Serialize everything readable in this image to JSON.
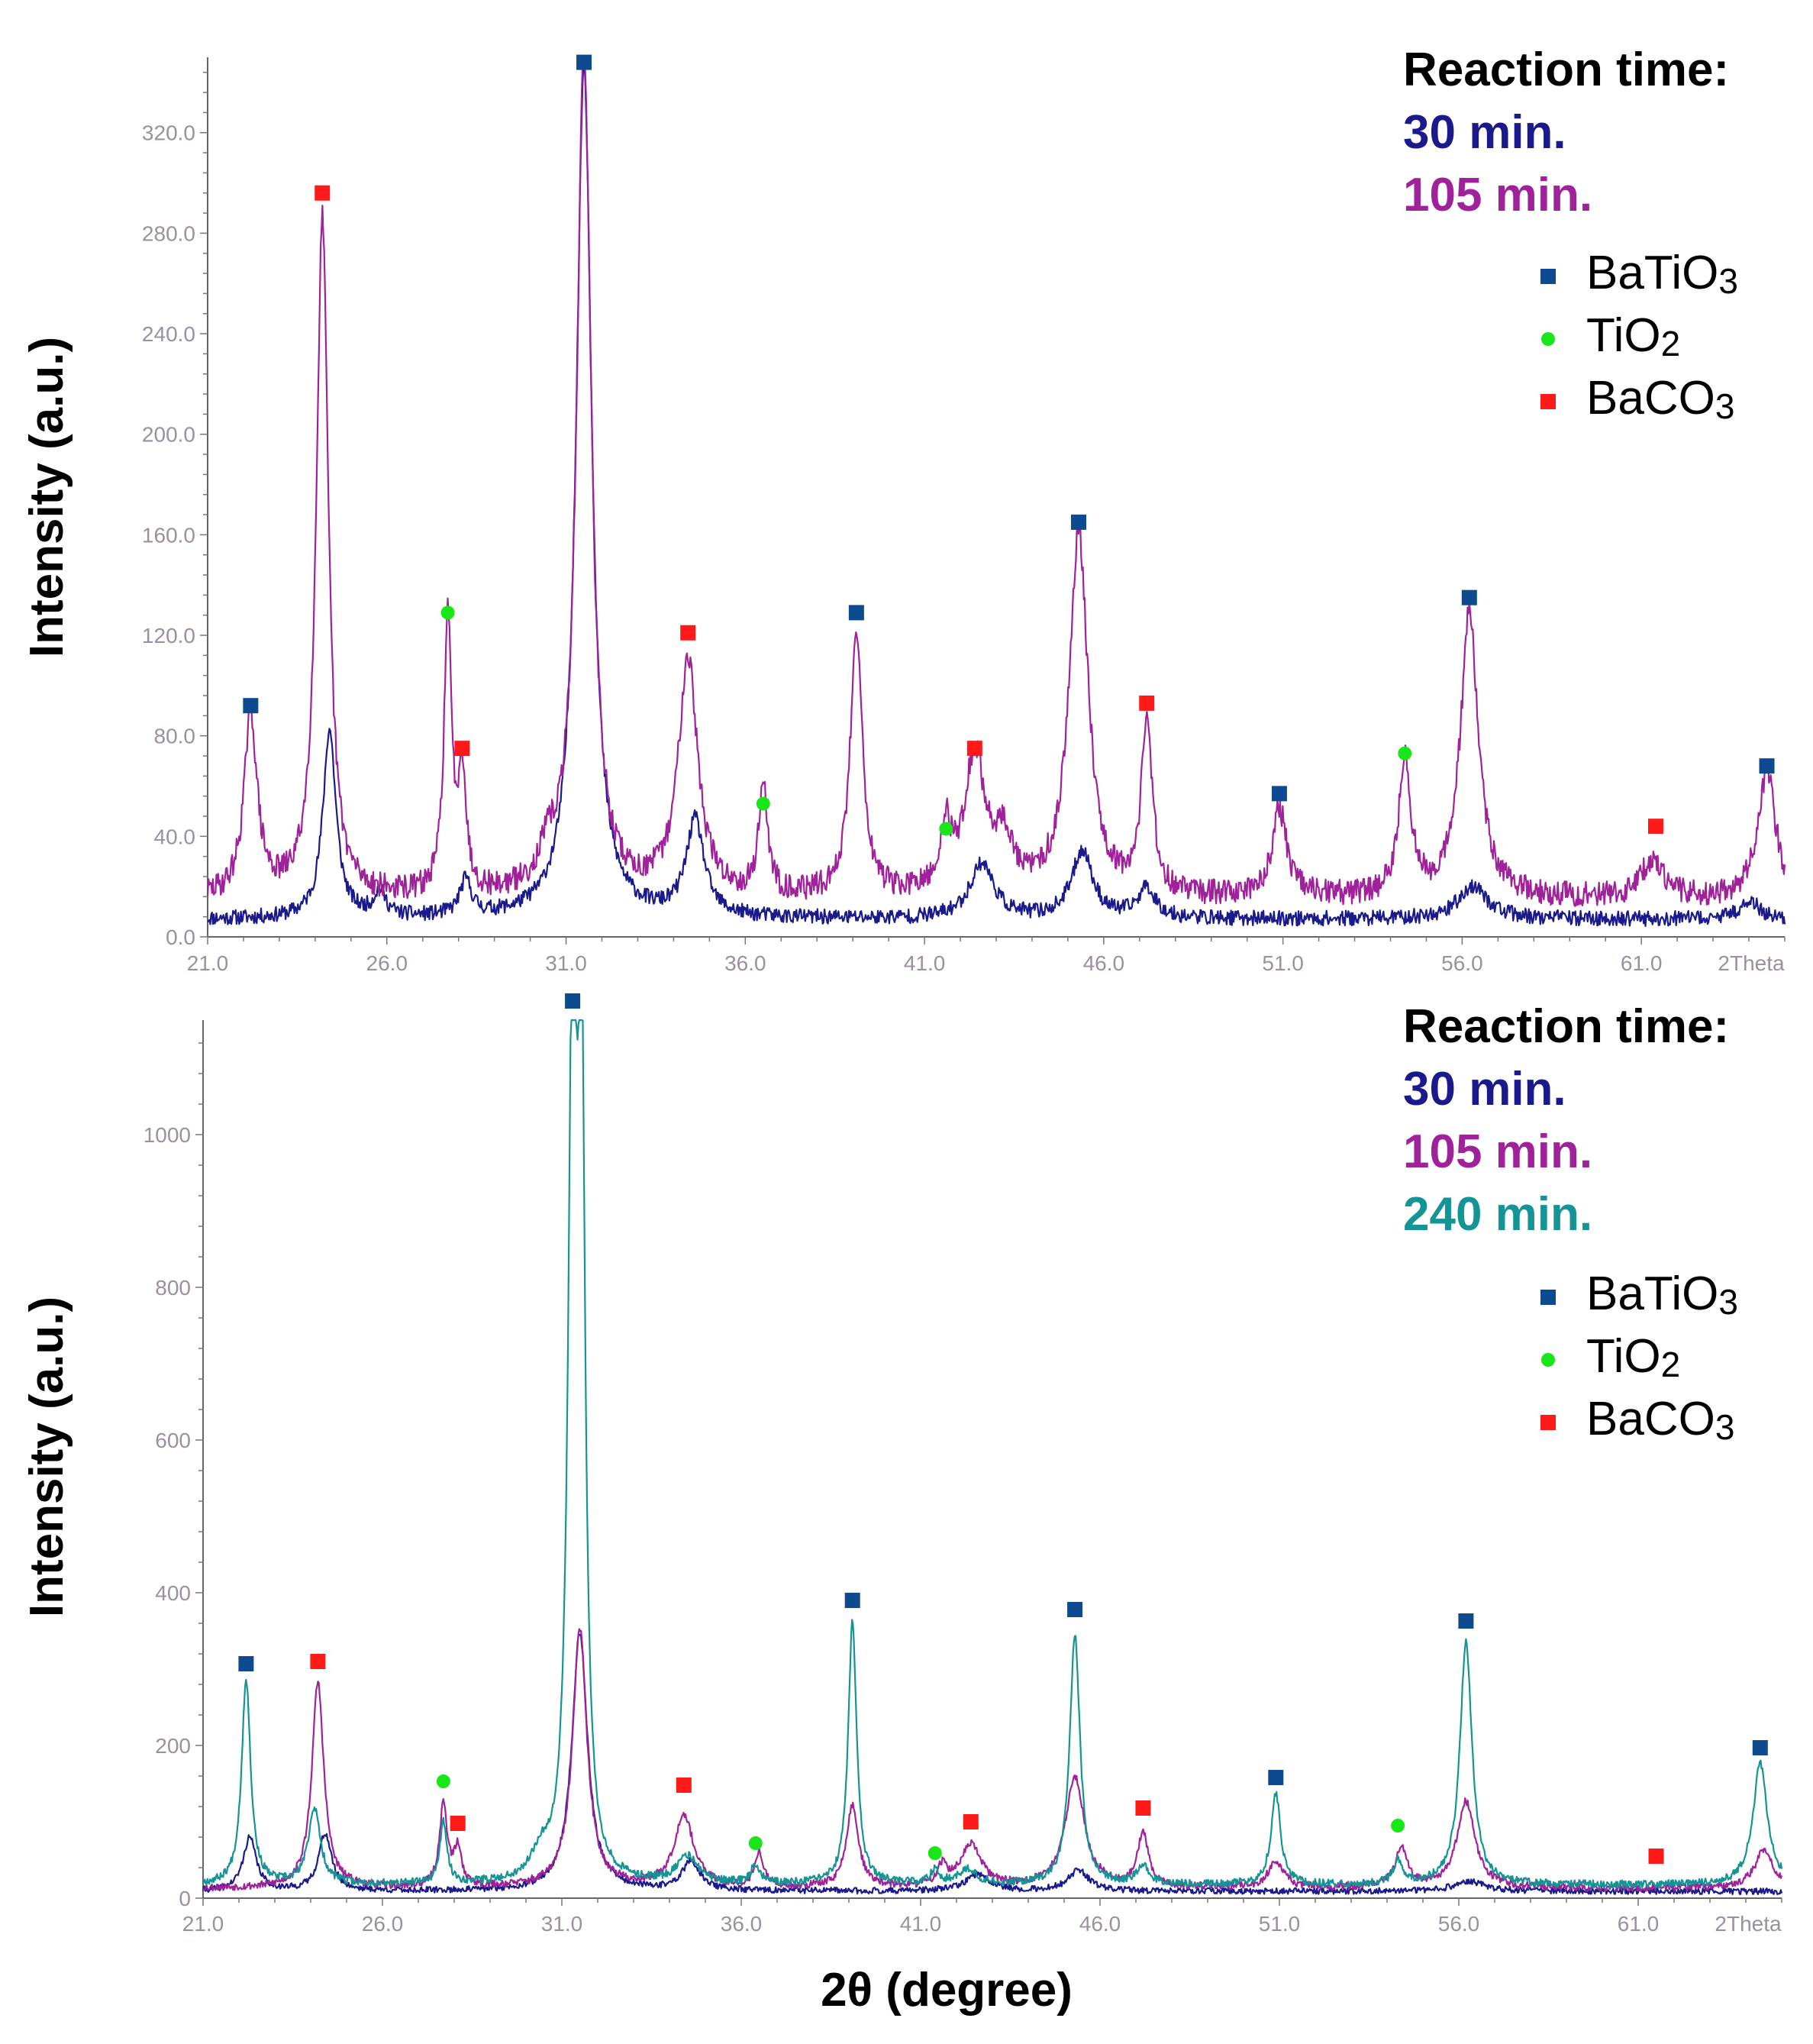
{
  "figure": {
    "shared_xlabel": "2θ (degree)",
    "marker_colors": {
      "BaTiO3": "#0d4a8f",
      "TiO2": "#19e619",
      "BaCO3": "#ff1a1a"
    },
    "series_colors": {
      "30 min.": "#1a1a8c",
      "105 min.": "#a0229a",
      "240 min.": "#149494"
    }
  },
  "chart_data": [
    {
      "type": "line",
      "panel": "top",
      "title": "",
      "xlabel": "",
      "ylabel": "Intensity (a.u.)",
      "xlim": [
        21.0,
        65.0
      ],
      "ylim": [
        0,
        350
      ],
      "xticks": [
        21,
        26,
        31,
        36,
        41,
        46,
        51,
        56,
        61
      ],
      "xtick_labels": [
        "21.0",
        "26.0",
        "31.0",
        "36.0",
        "41.0",
        "46.0",
        "51.0",
        "56.0",
        "61.0"
      ],
      "x_end_label": "2Theta",
      "yticks": [
        0,
        40,
        80,
        120,
        160,
        200,
        240,
        280,
        320
      ],
      "ytick_labels": [
        "0.0",
        "40.0",
        "80.0",
        "120.0",
        "160.0",
        "200.0",
        "240.0",
        "280.0",
        "320.0"
      ],
      "annotation": {
        "heading": "Reaction time:",
        "entries": [
          "30 min.",
          "105 min."
        ]
      },
      "legend": [
        {
          "label": "BaTiO",
          "sub": "3",
          "phase": "BaTiO3"
        },
        {
          "label": "TiO",
          "sub": "2",
          "phase": "TiO2"
        },
        {
          "label": "BaCO",
          "sub": "3",
          "phase": "BaCO3"
        }
      ],
      "series": [
        {
          "name": "30 min.",
          "color": "#1a1a8c",
          "baseline": 4,
          "noise": 3,
          "seed": 11,
          "peaks": [
            [
              24.4,
              75,
              0.22
            ],
            [
              31.5,
              340,
              0.26
            ],
            [
              34.6,
              38,
              0.3
            ],
            [
              42.6,
              22,
              0.4
            ],
            [
              45.4,
              27,
              0.35
            ],
            [
              56.3,
              13,
              0.5
            ],
            [
              28.2,
              14,
              0.2
            ],
            [
              25.8,
              10,
              0.2
            ],
            [
              64.0,
              8,
              0.3
            ],
            [
              47.2,
              12,
              0.3
            ]
          ]
        },
        {
          "name": "105 min.",
          "color": "#a0229a",
          "baseline": 10,
          "noise": 5,
          "seed": 29,
          "peaks": [
            [
              22.2,
              72,
              0.22
            ],
            [
              24.2,
              270,
              0.2
            ],
            [
              27.7,
              108,
              0.13
            ],
            [
              28.1,
              48,
              0.13
            ],
            [
              31.5,
              338,
              0.24
            ],
            [
              34.4,
              95,
              0.32
            ],
            [
              36.5,
              45,
              0.14
            ],
            [
              39.1,
              107,
              0.2
            ],
            [
              41.6,
              25,
              0.16
            ],
            [
              42.4,
              55,
              0.35
            ],
            [
              43.2,
              20,
              0.3
            ],
            [
              45.3,
              145,
              0.32
            ],
            [
              47.2,
              70,
              0.18
            ],
            [
              50.9,
              35,
              0.25
            ],
            [
              54.4,
              54,
              0.2
            ],
            [
              56.2,
              113,
              0.3
            ],
            [
              61.3,
              15,
              0.35
            ],
            [
              64.5,
              50,
              0.3
            ],
            [
              30.5,
              12,
              0.3
            ]
          ]
        }
      ],
      "markers": [
        {
          "phase": "BaTiO3",
          "x": 22.2,
          "y": 92
        },
        {
          "phase": "BaCO3",
          "x": 24.2,
          "y": 296
        },
        {
          "phase": "TiO2",
          "x": 27.7,
          "y": 129
        },
        {
          "phase": "BaCO3",
          "x": 28.1,
          "y": 75
        },
        {
          "phase": "BaTiO3",
          "x": 31.5,
          "y": 348
        },
        {
          "phase": "BaCO3",
          "x": 34.4,
          "y": 121
        },
        {
          "phase": "TiO2",
          "x": 36.5,
          "y": 53
        },
        {
          "phase": "BaTiO3",
          "x": 39.1,
          "y": 129
        },
        {
          "phase": "TiO2",
          "x": 41.6,
          "y": 43
        },
        {
          "phase": "BaCO3",
          "x": 42.4,
          "y": 75
        },
        {
          "phase": "BaTiO3",
          "x": 45.3,
          "y": 165
        },
        {
          "phase": "BaCO3",
          "x": 47.2,
          "y": 93
        },
        {
          "phase": "BaTiO3",
          "x": 50.9,
          "y": 57
        },
        {
          "phase": "TiO2",
          "x": 54.4,
          "y": 73
        },
        {
          "phase": "BaTiO3",
          "x": 56.2,
          "y": 135
        },
        {
          "phase": "BaCO3",
          "x": 61.4,
          "y": 44
        },
        {
          "phase": "BaTiO3",
          "x": 64.5,
          "y": 68
        }
      ]
    },
    {
      "type": "line",
      "panel": "bottom",
      "title": "",
      "xlabel": "2θ (degree)",
      "ylabel": "Intensity (a.u.)",
      "xlim": [
        21.0,
        65.0
      ],
      "ylim": [
        0,
        1150
      ],
      "xticks": [
        21,
        26,
        31,
        36,
        41,
        46,
        51,
        56,
        61
      ],
      "xtick_labels": [
        "21.0",
        "26.0",
        "31.0",
        "36.0",
        "41.0",
        "46.0",
        "51.0",
        "56.0",
        "61.0"
      ],
      "x_end_label": "2Theta",
      "yticks": [
        0,
        200,
        400,
        600,
        800,
        1000
      ],
      "ytick_labels": [
        "0",
        "200",
        "400",
        "600",
        "800",
        "1000"
      ],
      "annotation": {
        "heading": "Reaction time:",
        "entries": [
          "30 min.",
          "105 min.",
          "240 min."
        ]
      },
      "legend": [
        {
          "label": "BaTiO",
          "sub": "3",
          "phase": "BaTiO3"
        },
        {
          "label": "TiO",
          "sub": "2",
          "phase": "TiO2"
        },
        {
          "label": "BaCO",
          "sub": "3",
          "phase": "BaCO3"
        }
      ],
      "series": [
        {
          "name": "30 min.",
          "color": "#1a1a8c",
          "baseline": 5,
          "noise": 4,
          "seed": 41,
          "peaks": [
            [
              22.3,
              70,
              0.22
            ],
            [
              24.4,
              75,
              0.22
            ],
            [
              31.5,
              340,
              0.26
            ],
            [
              34.6,
              38,
              0.3
            ],
            [
              42.6,
              22,
              0.4
            ],
            [
              45.4,
              27,
              0.35
            ],
            [
              56.3,
              13,
              0.5
            ]
          ]
        },
        {
          "name": "105 min.",
          "color": "#a0229a",
          "baseline": 8,
          "noise": 5,
          "seed": 53,
          "peaks": [
            [
              24.2,
              270,
              0.2
            ],
            [
              27.7,
              108,
              0.13
            ],
            [
              28.1,
              48,
              0.13
            ],
            [
              31.5,
              338,
              0.24
            ],
            [
              34.4,
              95,
              0.32
            ],
            [
              36.5,
              45,
              0.14
            ],
            [
              39.1,
              107,
              0.2
            ],
            [
              41.6,
              25,
              0.16
            ],
            [
              42.4,
              55,
              0.35
            ],
            [
              45.3,
              145,
              0.32
            ],
            [
              47.2,
              70,
              0.18
            ],
            [
              50.9,
              35,
              0.25
            ],
            [
              54.4,
              54,
              0.2
            ],
            [
              56.2,
              113,
              0.3
            ],
            [
              64.5,
              50,
              0.3
            ]
          ]
        },
        {
          "name": "240 min.",
          "color": "#149494",
          "baseline": 12,
          "noise": 5,
          "seed": 67,
          "peaks": [
            [
              22.2,
              270,
              0.15
            ],
            [
              24.1,
              100,
              0.2
            ],
            [
              27.7,
              80,
              0.12
            ],
            [
              31.3,
              1140,
              0.14
            ],
            [
              31.55,
              980,
              0.12
            ],
            [
              30.4,
              30,
              0.3
            ],
            [
              34.5,
              35,
              0.35
            ],
            [
              36.4,
              25,
              0.15
            ],
            [
              39.1,
              345,
              0.14
            ],
            [
              41.4,
              18,
              0.15
            ],
            [
              42.3,
              20,
              0.3
            ],
            [
              45.3,
              330,
              0.17
            ],
            [
              47.2,
              25,
              0.2
            ],
            [
              50.9,
              120,
              0.16
            ],
            [
              54.3,
              30,
              0.15
            ],
            [
              56.2,
              320,
              0.2
            ],
            [
              64.4,
              160,
              0.24
            ]
          ]
        }
      ],
      "markers": [
        {
          "phase": "BaTiO3",
          "x": 22.2,
          "y": 307
        },
        {
          "phase": "BaCO3",
          "x": 24.2,
          "y": 310
        },
        {
          "phase": "TiO2",
          "x": 27.7,
          "y": 153
        },
        {
          "phase": "BaCO3",
          "x": 28.1,
          "y": 98
        },
        {
          "phase": "BaTiO3",
          "x": 31.3,
          "y": 1175
        },
        {
          "phase": "BaCO3",
          "x": 34.4,
          "y": 148
        },
        {
          "phase": "TiO2",
          "x": 36.4,
          "y": 72
        },
        {
          "phase": "BaTiO3",
          "x": 39.1,
          "y": 390
        },
        {
          "phase": "TiO2",
          "x": 41.4,
          "y": 59
        },
        {
          "phase": "BaCO3",
          "x": 42.4,
          "y": 100
        },
        {
          "phase": "BaTiO3",
          "x": 45.3,
          "y": 378
        },
        {
          "phase": "BaCO3",
          "x": 47.2,
          "y": 118
        },
        {
          "phase": "BaTiO3",
          "x": 50.9,
          "y": 158
        },
        {
          "phase": "TiO2",
          "x": 54.3,
          "y": 95
        },
        {
          "phase": "BaTiO3",
          "x": 56.2,
          "y": 363
        },
        {
          "phase": "BaCO3",
          "x": 61.5,
          "y": 55
        },
        {
          "phase": "BaTiO3",
          "x": 64.4,
          "y": 197
        }
      ]
    }
  ]
}
